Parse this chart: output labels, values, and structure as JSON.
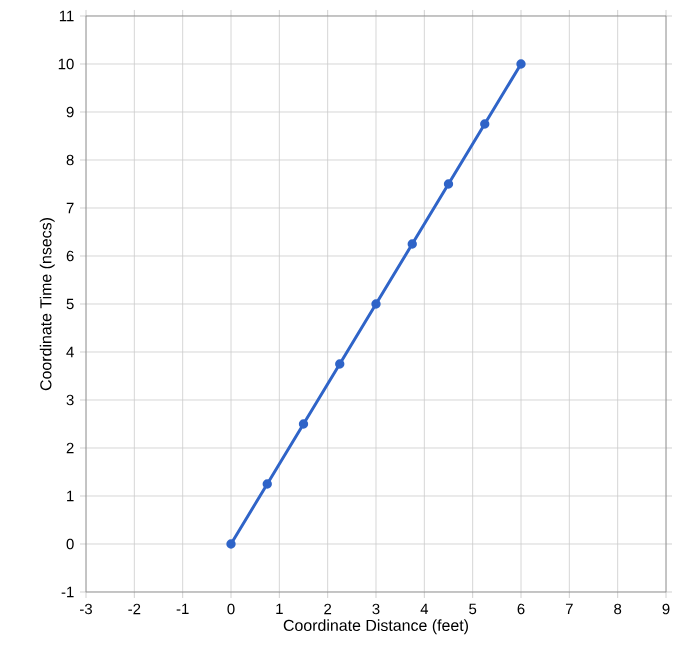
{
  "chart_data": {
    "type": "line",
    "xlabel": "Coordinate Distance (feet)",
    "ylabel": "Coordinate Time (nsecs)",
    "x": [
      0,
      0.75,
      1.5,
      2.25,
      3,
      3.75,
      4.5,
      5.25,
      6
    ],
    "series": [
      {
        "color": "#2f64c8",
        "values": [
          0,
          1.25,
          2.5,
          3.75,
          5,
          6.25,
          7.5,
          8.75,
          10
        ]
      }
    ],
    "xlim": [
      -3,
      9
    ],
    "xticks": [
      -3,
      -2,
      -1,
      0,
      1,
      2,
      3,
      4,
      5,
      6,
      7,
      8,
      9
    ],
    "ylim": [
      -1,
      11
    ],
    "yticks": [
      -1,
      0,
      1,
      2,
      3,
      4,
      5,
      6,
      7,
      8,
      9,
      10,
      11
    ],
    "grid": true,
    "marker": "circle",
    "line_style": "solid"
  }
}
